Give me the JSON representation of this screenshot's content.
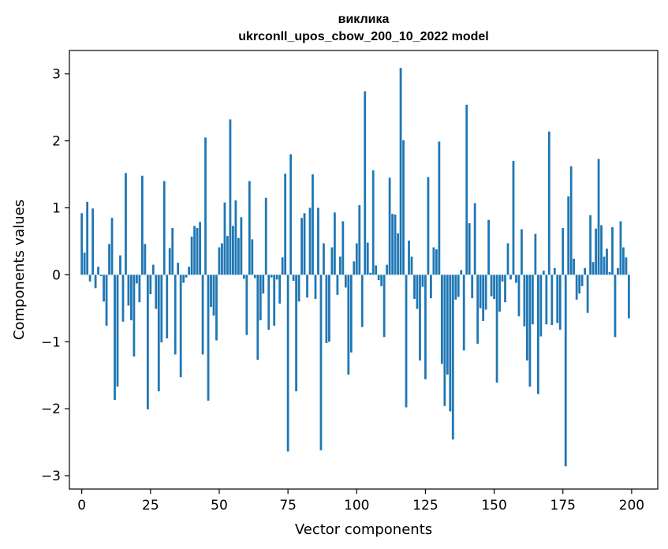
{
  "chart_data": {
    "type": "bar",
    "title": "виклика",
    "subtitle": "ukrconll_upos_cbow_200_10_2022 model",
    "xlabel": "Vector components",
    "ylabel": "Components values",
    "xlim": [
      -4.5,
      209.5
    ],
    "ylim": [
      -3.2,
      3.35
    ],
    "xticks": [
      0,
      25,
      50,
      75,
      100,
      125,
      150,
      175,
      200
    ],
    "xtick_labels": [
      "0",
      "25",
      "50",
      "75",
      "100",
      "125",
      "150",
      "175",
      "200"
    ],
    "yticks": [
      -3,
      -2,
      -1,
      0,
      1,
      2,
      3
    ],
    "ytick_labels": [
      "−3",
      "−2",
      "−1",
      "0",
      "1",
      "2",
      "3"
    ],
    "grid": false,
    "bar_color": "#1f77b4",
    "x": [
      0,
      1,
      2,
      3,
      4,
      5,
      6,
      7,
      8,
      9,
      10,
      11,
      12,
      13,
      14,
      15,
      16,
      17,
      18,
      19,
      20,
      21,
      22,
      23,
      24,
      25,
      26,
      27,
      28,
      29,
      30,
      31,
      32,
      33,
      34,
      35,
      36,
      37,
      38,
      39,
      40,
      41,
      42,
      43,
      44,
      45,
      46,
      47,
      48,
      49,
      50,
      51,
      52,
      53,
      54,
      55,
      56,
      57,
      58,
      59,
      60,
      61,
      62,
      63,
      64,
      65,
      66,
      67,
      68,
      69,
      70,
      71,
      72,
      73,
      74,
      75,
      76,
      77,
      78,
      79,
      80,
      81,
      82,
      83,
      84,
      85,
      86,
      87,
      88,
      89,
      90,
      91,
      92,
      93,
      94,
      95,
      96,
      97,
      98,
      99,
      100,
      101,
      102,
      103,
      104,
      105,
      106,
      107,
      108,
      109,
      110,
      111,
      112,
      113,
      114,
      115,
      116,
      117,
      118,
      119,
      120,
      121,
      122,
      123,
      124,
      125,
      126,
      127,
      128,
      129,
      130,
      131,
      132,
      133,
      134,
      135,
      136,
      137,
      138,
      139,
      140,
      141,
      142,
      143,
      144,
      145,
      146,
      147,
      148,
      149,
      150,
      151,
      152,
      153,
      154,
      155,
      156,
      157,
      158,
      159,
      160,
      161,
      162,
      163,
      164,
      165,
      166,
      167,
      168,
      169,
      170,
      171,
      172,
      173,
      174,
      175,
      176,
      177,
      178,
      179,
      180,
      181,
      182,
      183,
      184,
      185,
      186,
      187,
      188,
      189,
      190,
      191,
      192,
      193,
      194,
      195,
      196,
      197,
      198,
      199
    ],
    "values": [
      0.92,
      0.33,
      1.09,
      -0.1,
      0.99,
      -0.2,
      0.12,
      -0.02,
      -0.4,
      -0.76,
      0.46,
      0.85,
      -1.87,
      -1.67,
      0.29,
      -0.7,
      1.52,
      -0.46,
      -0.68,
      -1.22,
      -0.13,
      -0.41,
      1.48,
      0.46,
      -2.01,
      -0.29,
      0.15,
      -0.51,
      -1.74,
      -1.01,
      1.4,
      -0.95,
      0.4,
      0.7,
      -1.19,
      0.18,
      -1.53,
      -0.12,
      -0.04,
      0.12,
      0.57,
      0.73,
      0.7,
      0.79,
      -1.19,
      2.05,
      -1.88,
      -0.48,
      -0.61,
      -0.98,
      0.41,
      0.47,
      1.08,
      0.58,
      2.32,
      0.73,
      1.11,
      0.55,
      0.86,
      -0.06,
      -0.9,
      1.4,
      0.53,
      -0.05,
      -1.27,
      -0.68,
      -0.28,
      1.15,
      -0.82,
      -0.04,
      -0.76,
      -0.07,
      -0.43,
      0.26,
      1.51,
      -2.64,
      1.8,
      -0.09,
      -1.74,
      -0.4,
      0.85,
      0.92,
      -0.34,
      1.0,
      1.5,
      -0.36,
      1.0,
      -2.62,
      0.47,
      -1.02,
      -1.0,
      0.41,
      0.93,
      -0.3,
      0.27,
      0.8,
      -0.19,
      -1.49,
      -1.16,
      0.2,
      0.47,
      1.04,
      -0.78,
      2.74,
      0.48,
      0.03,
      1.56,
      0.14,
      -0.08,
      -0.17,
      -0.93,
      0.15,
      1.45,
      0.91,
      0.9,
      0.62,
      3.09,
      2.01,
      -1.98,
      0.51,
      0.27,
      -0.36,
      -0.51,
      -1.28,
      -0.18,
      -1.56,
      1.46,
      -0.35,
      0.41,
      0.38,
      1.99,
      -1.33,
      -1.96,
      -1.49,
      -2.04,
      -2.46,
      -0.37,
      -0.33,
      0.07,
      -1.13,
      2.54,
      0.77,
      -0.35,
      1.07,
      -1.03,
      -0.5,
      -0.69,
      -0.52,
      0.82,
      -0.32,
      -0.36,
      -1.61,
      -0.55,
      -0.1,
      -0.41,
      0.47,
      -0.07,
      1.7,
      -0.12,
      -0.62,
      0.68,
      -0.77,
      -1.28,
      -1.67,
      -0.74,
      0.61,
      -1.78,
      -0.92,
      0.06,
      -0.74,
      2.14,
      -0.75,
      0.1,
      -0.72,
      -0.82,
      0.7,
      -2.86,
      1.17,
      1.62,
      0.24,
      -0.37,
      -0.28,
      -0.17,
      0.1,
      -0.57,
      0.89,
      0.19,
      0.69,
      1.73,
      0.74,
      0.27,
      0.39,
      0.04,
      0.71,
      -0.93,
      0.1,
      0.8,
      0.41,
      0.26,
      -0.65
    ]
  }
}
